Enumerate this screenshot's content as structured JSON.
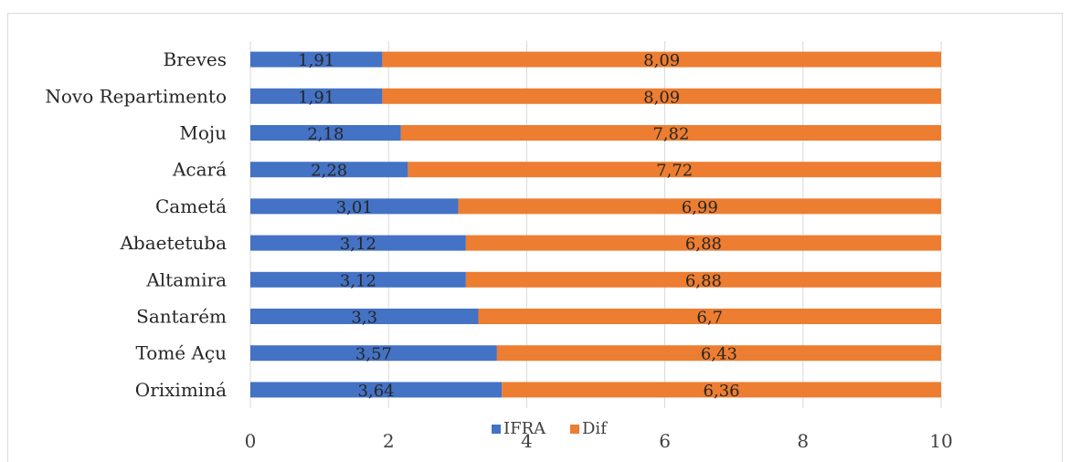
{
  "chart_data": {
    "type": "bar",
    "orientation": "horizontal",
    "stacked": true,
    "categories": [
      "Breves",
      "Novo Repartimento",
      "Moju",
      "Acará",
      "Cametá",
      "Abaetetuba",
      "Altamira",
      "Santarém",
      "Tomé Açu",
      "Oriximiná"
    ],
    "series": [
      {
        "name": "IFRA",
        "color": "#4472c4",
        "values": [
          1.91,
          1.91,
          2.18,
          2.28,
          3.01,
          3.12,
          3.12,
          3.3,
          3.57,
          3.64
        ],
        "labels": [
          "1,91",
          "1,91",
          "2,18",
          "2,28",
          "3,01",
          "3,12",
          "3,12",
          "3,3",
          "3,57",
          "3,64"
        ]
      },
      {
        "name": "Dif",
        "color": "#ed7d31",
        "values": [
          8.09,
          8.09,
          7.82,
          7.72,
          6.99,
          6.88,
          6.88,
          6.7,
          6.43,
          6.36
        ],
        "labels": [
          "8,09",
          "8,09",
          "7,82",
          "7,72",
          "6,99",
          "6,88",
          "6,88",
          "6,7",
          "6,43",
          "6,36"
        ]
      }
    ],
    "xlim": [
      0,
      10
    ],
    "xticks": [
      0,
      2,
      4,
      6,
      8,
      10
    ],
    "xtick_labels": [
      "0",
      "2",
      "4",
      "6",
      "8",
      "10"
    ],
    "grid": "vertical",
    "legend": "bottom-center"
  }
}
